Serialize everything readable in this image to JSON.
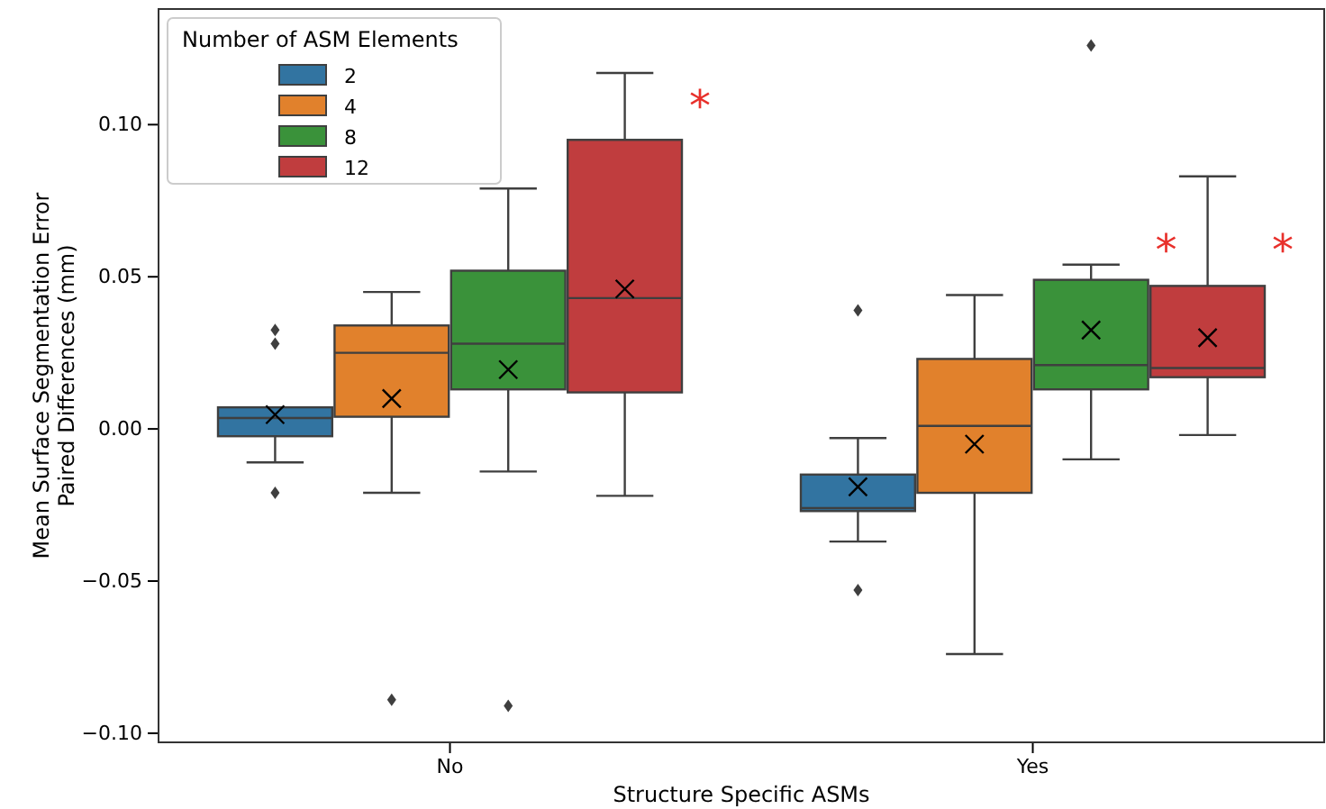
{
  "chart_data": {
    "type": "box",
    "xlabel": "Structure Specific ASMs",
    "ylabel": "Mean Surface Segmentation Error\nPaired Differences (mm)",
    "legend_title": "Number of ASM Elements",
    "legend": "top left",
    "categories": [
      "No",
      "Yes"
    ],
    "ylim": [
      -0.103,
      0.138
    ],
    "yticks": [
      {
        "value": -0.1,
        "label": "−0.10"
      },
      {
        "value": -0.05,
        "label": "−0.05"
      },
      {
        "value": 0,
        "label": "0.00"
      },
      {
        "value": 0.05,
        "label": "0.05"
      },
      {
        "value": 0.1,
        "label": "0.10"
      }
    ],
    "series": [
      {
        "name": "2",
        "color": "#3274a1",
        "boxes": [
          {
            "low": -0.011,
            "q1": -0.0024,
            "median": 0.0036,
            "q3": 0.0071,
            "high": 0.0071,
            "mean": 0.0047,
            "outliers": [
              0.0325,
              0.028,
              -0.021
            ]
          },
          {
            "low": -0.037,
            "q1": -0.027,
            "median": -0.026,
            "q3": -0.015,
            "high": -0.003,
            "mean": -0.019,
            "outliers": [
              0.039,
              -0.053
            ]
          }
        ]
      },
      {
        "name": "4",
        "color": "#e1812c",
        "boxes": [
          {
            "low": -0.021,
            "q1": 0.004,
            "median": 0.025,
            "q3": 0.034,
            "high": 0.045,
            "mean": 0.01,
            "outliers": [
              -0.089
            ]
          },
          {
            "low": -0.074,
            "q1": -0.021,
            "median": 0.001,
            "q3": 0.023,
            "high": 0.044,
            "mean": -0.005
          }
        ]
      },
      {
        "name": "8",
        "color": "#3a923a",
        "boxes": [
          {
            "low": -0.014,
            "q1": 0.013,
            "median": 0.028,
            "q3": 0.052,
            "high": 0.079,
            "mean": 0.0195,
            "outliers": [
              -0.091
            ]
          },
          {
            "low": -0.01,
            "q1": 0.013,
            "median": 0.021,
            "q3": 0.049,
            "high": 0.054,
            "mean": 0.0325,
            "outliers": [
              0.126
            ]
          }
        ]
      },
      {
        "name": "12",
        "color": "#c03d3e",
        "boxes": [
          {
            "low": -0.022,
            "q1": 0.012,
            "median": 0.043,
            "q3": 0.095,
            "high": 0.117,
            "mean": 0.046
          },
          {
            "low": -0.002,
            "q1": 0.017,
            "median": 0.02,
            "q3": 0.047,
            "high": 0.083,
            "mean": 0.03
          }
        ]
      }
    ],
    "annotations": [
      "*",
      "*",
      "*"
    ]
  }
}
